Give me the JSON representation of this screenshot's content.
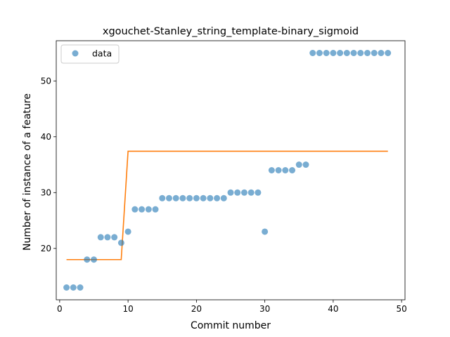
{
  "chart_data": {
    "type": "scatter",
    "title": "xgouchet-Stanley_string_template-binary_sigmoid",
    "xlabel": "Commit number",
    "ylabel": "Number of instance of a feature",
    "xlim": [
      -0.5,
      50.5
    ],
    "ylim": [
      10.8,
      57.2
    ],
    "xticks": [
      0,
      10,
      20,
      30,
      40,
      50
    ],
    "yticks": [
      20,
      30,
      40,
      50
    ],
    "grid": false,
    "legend": {
      "placement": "top-left",
      "entries": [
        "data"
      ]
    },
    "colors": {
      "points": "#1f77b4",
      "fit": "#ff7f0e"
    },
    "series": [
      {
        "name": "data",
        "kind": "scatter",
        "x": [
          1,
          2,
          3,
          4,
          5,
          6,
          7,
          8,
          9,
          10,
          11,
          12,
          13,
          14,
          15,
          16,
          17,
          18,
          19,
          20,
          21,
          22,
          23,
          24,
          25,
          26,
          27,
          28,
          29,
          30,
          31,
          32,
          33,
          34,
          35,
          36,
          37,
          38,
          39,
          40,
          41,
          42,
          43,
          44,
          45,
          46,
          47,
          48
        ],
        "y": [
          13,
          13,
          13,
          18,
          18,
          22,
          22,
          22,
          21,
          23,
          27,
          27,
          27,
          27,
          29,
          29,
          29,
          29,
          29,
          29,
          29,
          29,
          29,
          29,
          30,
          30,
          30,
          30,
          30,
          23,
          34,
          34,
          34,
          34,
          35,
          35,
          55,
          55,
          55,
          55,
          55,
          55,
          55,
          55,
          55,
          55,
          55,
          55
        ]
      },
      {
        "kind": "line",
        "x": [
          1,
          9,
          10,
          48
        ],
        "y": [
          18,
          18,
          37.4,
          37.4
        ]
      }
    ]
  }
}
